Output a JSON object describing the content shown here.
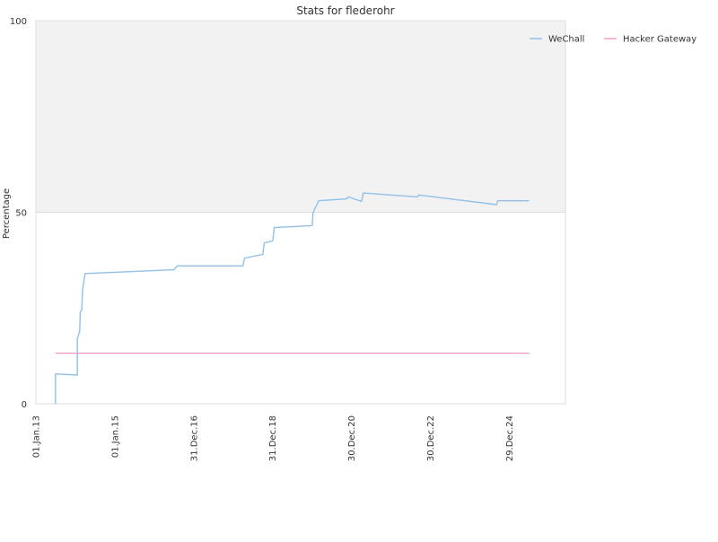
{
  "chart_data": {
    "type": "line",
    "title": "Stats for flederohr",
    "ylabel": "Percentage",
    "xlabel": "",
    "ylim": [
      0,
      100
    ],
    "xlim": [
      "2013-01-01",
      "2026-06-01"
    ],
    "y_ticks": [
      0,
      50,
      100
    ],
    "x_ticks": [
      {
        "date": "2013-01-01",
        "label": "01.Jan.13"
      },
      {
        "date": "2015-01-01",
        "label": "01.Jan.15"
      },
      {
        "date": "2016-12-31",
        "label": "31.Dec.16"
      },
      {
        "date": "2018-12-31",
        "label": "31.Dec.18"
      },
      {
        "date": "2020-12-30",
        "label": "30.Dec.20"
      },
      {
        "date": "2022-12-30",
        "label": "30.Dec.22"
      },
      {
        "date": "2024-12-29",
        "label": "29.Dec.24"
      }
    ],
    "grid": true,
    "upper_band_fill": "#f2f2f2",
    "legend_position": "top-right",
    "series": [
      {
        "name": "WeChall",
        "color": "#90c0e8",
        "points": [
          [
            "2013-07-01",
            0
          ],
          [
            "2013-07-01",
            7.8
          ],
          [
            "2014-01-20",
            7.5
          ],
          [
            "2014-01-20",
            17
          ],
          [
            "2014-02-10",
            19
          ],
          [
            "2014-02-15",
            24
          ],
          [
            "2014-03-01",
            24.5
          ],
          [
            "2014-03-10",
            30
          ],
          [
            "2014-04-01",
            34
          ],
          [
            "2015-06-01",
            34.5
          ],
          [
            "2016-07-01",
            35
          ],
          [
            "2016-08-01",
            36
          ],
          [
            "2018-04-01",
            36
          ],
          [
            "2018-04-15",
            38
          ],
          [
            "2018-10-01",
            39
          ],
          [
            "2018-10-15",
            42
          ],
          [
            "2019-01-01",
            42.5
          ],
          [
            "2019-01-15",
            46
          ],
          [
            "2020-01-01",
            46.5
          ],
          [
            "2020-01-10",
            50
          ],
          [
            "2020-03-01",
            53
          ],
          [
            "2020-11-15",
            53.5
          ],
          [
            "2020-12-01",
            54
          ],
          [
            "2021-04-01",
            52.8
          ],
          [
            "2021-04-20",
            55
          ],
          [
            "2022-09-01",
            54
          ],
          [
            "2022-09-15",
            54.5
          ],
          [
            "2024-09-01",
            52
          ],
          [
            "2024-09-15",
            53
          ],
          [
            "2025-07-01",
            53
          ]
        ]
      },
      {
        "name": "Hacker Gateway",
        "color": "#f0a0c8",
        "points": [
          [
            "2013-07-01",
            13.2
          ],
          [
            "2025-07-01",
            13.2
          ]
        ]
      }
    ]
  }
}
